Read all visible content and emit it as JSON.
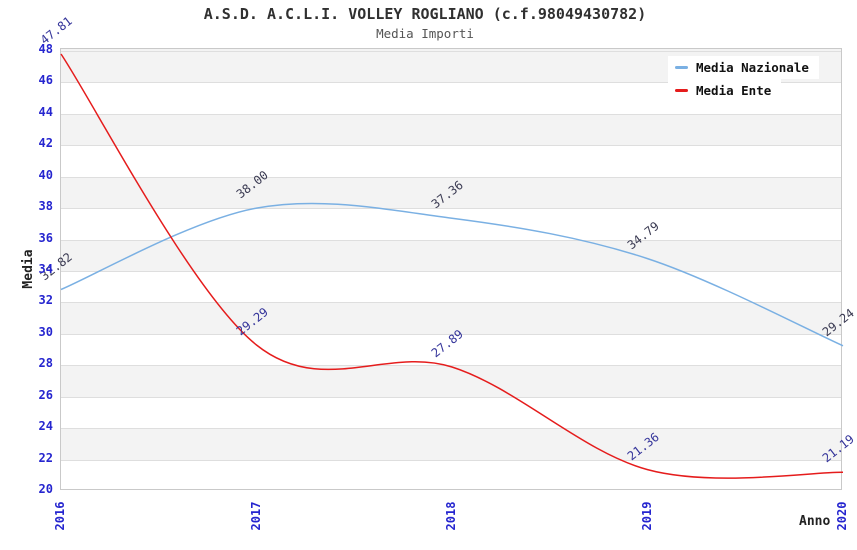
{
  "header": {
    "title": "A.S.D. A.C.L.I. VOLLEY ROGLIANO (c.f.98049430782)",
    "subtitle": "Media Importi"
  },
  "legend": {
    "position": "top-right",
    "items": [
      {
        "label": "Media Nazionale",
        "color": "#7ab0e3"
      },
      {
        "label": "Media Ente",
        "color": "#e51c1c"
      }
    ]
  },
  "axes": {
    "x_title": "Anno",
    "y_title": "Media",
    "tick_color": "#2525cf",
    "y_ticks": [
      20,
      22,
      24,
      26,
      28,
      30,
      32,
      34,
      36,
      38,
      40,
      42,
      44,
      46,
      48
    ]
  },
  "style": {
    "band_color": "#f3f3f3",
    "gridline_color": "#dedede",
    "plot_border_color": "#c9c9c9"
  },
  "chart_data": {
    "type": "line",
    "title": "A.S.D. A.C.L.I. VOLLEY ROGLIANO (c.f.98049430782)",
    "subtitle": "Media Importi",
    "xlabel": "Anno",
    "ylabel": "Media",
    "x": [
      "2016",
      "2017",
      "2018",
      "2019",
      "2020"
    ],
    "series": [
      {
        "name": "Media Nazionale",
        "color": "#7ab0e3",
        "label_color": "#3a3a52",
        "values": [
          32.82,
          38.0,
          37.36,
          34.79,
          29.24
        ]
      },
      {
        "name": "Media Ente",
        "color": "#e51c1c",
        "label_color": "#34349a",
        "values": [
          47.81,
          29.29,
          27.89,
          21.36,
          21.19
        ]
      }
    ],
    "ylim": [
      20,
      48
    ],
    "y_tick_step": 2,
    "grid": "horizontal-bands-alternating",
    "legend_position": "top-right",
    "data_labels": "shown, rotated, two decimals"
  }
}
